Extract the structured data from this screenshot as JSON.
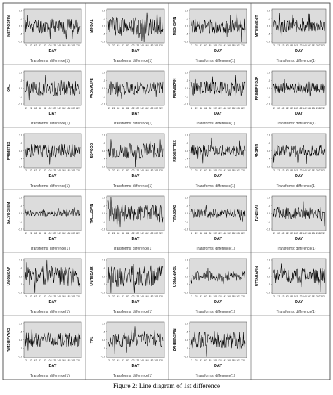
{
  "figure": {
    "caption": "Figure 2: Line diagram of 1st difference"
  },
  "chart_data": [
    {
      "type": "line",
      "ylabel": "METROSPIN",
      "xlabel": "DAY",
      "footer": "Transforms: difference(1)",
      "seed": 11,
      "amp": 1.0
    },
    {
      "type": "line",
      "ylabel": "MINDAL",
      "xlabel": "DAY",
      "footer": "Transforms: difference(1)",
      "seed": 12,
      "amp": 1.3
    },
    {
      "type": "line",
      "ylabel": "MEGHSPIN",
      "xlabel": "DAY",
      "footer": "Transforms: difference(1)",
      "seed": 13,
      "amp": 1.0
    },
    {
      "type": "line",
      "ylabel": "MITHUNKNIT",
      "xlabel": "DAY",
      "footer": "Transforms: difference(1)",
      "seed": 14,
      "amp": 0.8
    },
    {
      "type": "line",
      "ylabel": "OAL",
      "xlabel": "DAY",
      "footer": "Transforms: difference(1)",
      "seed": 21,
      "amp": 1.0
    },
    {
      "type": "line",
      "ylabel": "PADMALIFE",
      "xlabel": "DAY",
      "footer": "Transforms: difference(1)",
      "seed": 22,
      "amp": 0.9
    },
    {
      "type": "line",
      "ylabel": "PERVEZFIN",
      "xlabel": "DAY",
      "footer": "Transforms: difference(1)",
      "seed": 23,
      "amp": 1.0
    },
    {
      "type": "line",
      "ylabel": "PRIMEFINSJR",
      "xlabel": "DAY",
      "footer": "Transforms: difference(1)",
      "seed": 24,
      "amp": 0.7
    },
    {
      "type": "line",
      "ylabel": "PRIMETEX",
      "xlabel": "DAY",
      "footer": "Transforms: difference(1)",
      "seed": 31,
      "amp": 0.9
    },
    {
      "type": "line",
      "ylabel": "RDFOOD",
      "xlabel": "DAY",
      "footer": "Transforms: difference(1)",
      "seed": 32,
      "amp": 1.0
    },
    {
      "type": "line",
      "ylabel": "REGENTTEX",
      "xlabel": "DAY",
      "footer": "Transforms: difference(1)",
      "seed": 33,
      "amp": 0.8
    },
    {
      "type": "line",
      "ylabel": "RNSPIN",
      "xlabel": "DAY",
      "footer": "Transforms: difference(1)",
      "seed": 34,
      "amp": 0.8
    },
    {
      "type": "line",
      "ylabel": "SALVOCHEM",
      "xlabel": "DAY",
      "footer": "Transforms: difference(1)",
      "seed": 41,
      "amp": 0.5
    },
    {
      "type": "line",
      "ylabel": "TALLUSPIN",
      "xlabel": "DAY",
      "footer": "Transforms: difference(1)",
      "seed": 42,
      "amp": 1.2
    },
    {
      "type": "line",
      "ylabel": "TITASGAS",
      "xlabel": "DAY",
      "footer": "Transforms: difference(1)",
      "seed": 43,
      "amp": 0.6
    },
    {
      "type": "line",
      "ylabel": "TUNGHAI",
      "xlabel": "DAY",
      "footer": "Transforms: difference(1)",
      "seed": 44,
      "amp": 0.8
    },
    {
      "type": "line",
      "ylabel": "UNIONCAP",
      "xlabel": "DAY",
      "footer": "Transforms: difference(1)",
      "seed": 51,
      "amp": 1.3
    },
    {
      "type": "line",
      "ylabel": "UNITEDAIR",
      "xlabel": "DAY",
      "footer": "Transforms: difference(1)",
      "seed": 52,
      "amp": 1.4
    },
    {
      "type": "line",
      "ylabel": "USMANIAGL",
      "xlabel": "DAY",
      "footer": "Transforms: difference(1)",
      "seed": 53,
      "amp": 0.6
    },
    {
      "type": "line",
      "ylabel": "UTTARAFIN",
      "xlabel": "DAY",
      "footer": "Transforms: difference(1)",
      "seed": 61,
      "amp": 1.0
    },
    {
      "type": "line",
      "ylabel": "WMSHIPYARD",
      "xlabel": "DAY",
      "footer": "Transforms: difference(1)",
      "seed": 62,
      "amp": 0.9
    },
    {
      "type": "line",
      "ylabel": "YPL",
      "xlabel": "DAY",
      "footer": "Transforms: difference(1)",
      "seed": 63,
      "amp": 0.9
    },
    {
      "type": "line",
      "ylabel": "ZAHEENSPIN",
      "xlabel": "DAY",
      "footer": "Transforms: difference(1)",
      "seed": 64,
      "amp": 1.1
    }
  ]
}
